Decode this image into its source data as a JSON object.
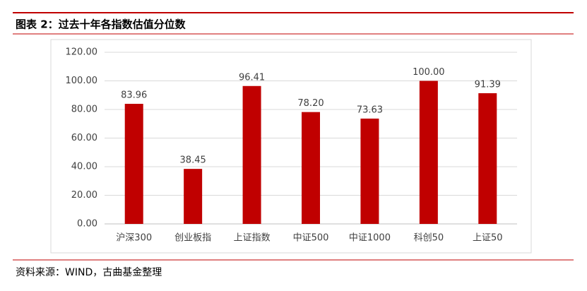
{
  "chart_data": {
    "type": "bar",
    "title": "图表 2：过去十年各指数估值分位数",
    "source": "资料来源：WIND，古曲基金整理",
    "categories": [
      "沪深300",
      "创业板指",
      "上证指数",
      "中证500",
      "中证1000",
      "科创50",
      "上证50"
    ],
    "values": [
      83.96,
      38.45,
      96.41,
      78.2,
      73.63,
      100.0,
      91.39
    ],
    "value_labels": [
      "83.96",
      "38.45",
      "96.41",
      "78.20",
      "73.63",
      "100.00",
      "91.39"
    ],
    "color": "#c00000",
    "ylim": [
      0,
      120
    ],
    "yticks": [
      {
        "value": 0,
        "label": "0.00"
      },
      {
        "value": 20,
        "label": "20.00"
      },
      {
        "value": 40,
        "label": "40.00"
      },
      {
        "value": 60,
        "label": "60.00"
      },
      {
        "value": 80,
        "label": "80.00"
      },
      {
        "value": 100,
        "label": "100.00"
      },
      {
        "value": 120,
        "label": "120.00"
      }
    ],
    "grid": true
  }
}
